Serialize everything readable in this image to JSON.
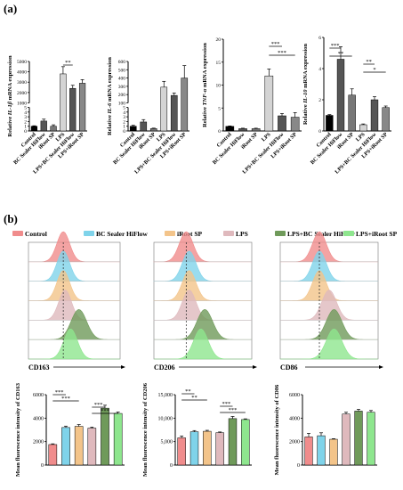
{
  "panel_a_label": "(a)",
  "panel_b_label": "(b)",
  "legend_b": [
    {
      "name": "Control",
      "color": "#f08c8c"
    },
    {
      "name": "BC Sealer HiFlow",
      "color": "#7fd3ea"
    },
    {
      "name": "iRoot SP",
      "color": "#f3c48a"
    },
    {
      "name": "LPS",
      "color": "#dfb9bd"
    },
    {
      "name": "LPS+BC Sealer HiFlow",
      "color": "#6f9a5a"
    },
    {
      "name": "LPS+iRoot SP",
      "color": "#8ee68e"
    }
  ],
  "chart_data": [
    {
      "type": "bar",
      "panel": "a1",
      "categories": [
        "Control",
        "BC Sealer HiFlow",
        "iRoot SP",
        "LPS",
        "LPS+BC Sealer HiFlow",
        "LPS+iRoot SP"
      ],
      "values": [
        1.0,
        2.1,
        1.0,
        3800,
        2400,
        2900
      ],
      "errors": [
        0.1,
        0.4,
        0.3,
        700,
        300,
        350
      ],
      "colors": [
        "#000000",
        "#555555",
        "#777777",
        "#d4d4d4",
        "#555555",
        "#888888"
      ],
      "ylabel_pre": "Relative ",
      "ylabel_gene": "IL-1β",
      "ylabel_post": " mRNA expression",
      "axis_break": true,
      "low_ticks": [
        "0",
        "1",
        "2",
        "3",
        "4",
        "5"
      ],
      "high_ticks": [
        "1000",
        "2000",
        "3000",
        "4000",
        "5000"
      ],
      "significance": [
        {
          "from": 3,
          "to": 4,
          "label": "**"
        }
      ]
    },
    {
      "type": "bar",
      "panel": "a2",
      "categories": [
        "Control",
        "BC Sealer HiFlow",
        "iRoot SP",
        "LPS",
        "LPS+BC Sealer HiFlow",
        "LPS+iRoot SP"
      ],
      "values": [
        1.0,
        1.9,
        0.5,
        290,
        190,
        400
      ],
      "errors": [
        0.2,
        0.5,
        0.1,
        70,
        30,
        150
      ],
      "colors": [
        "#000000",
        "#555555",
        "#777777",
        "#d4d4d4",
        "#555555",
        "#888888"
      ],
      "ylabel_pre": "Relative ",
      "ylabel_gene": "IL-6",
      "ylabel_post": " mRNA expression",
      "axis_break": true,
      "low_ticks": [
        "0",
        "1",
        "2",
        "3",
        "4",
        "5"
      ],
      "high_ticks": [
        "100",
        "200",
        "300",
        "400",
        "500",
        "600"
      ],
      "significance": []
    },
    {
      "type": "bar",
      "panel": "a3",
      "categories": [
        "Control",
        "BC Sealer HiFlow",
        "iRoot SP",
        "LPS",
        "LPS+BC Sealer HiFlow",
        "LPS+iRoot SP"
      ],
      "values": [
        1.0,
        0.5,
        0.5,
        12.0,
        3.3,
        3.0
      ],
      "errors": [
        0.1,
        0.1,
        0.1,
        1.5,
        0.5,
        1.0
      ],
      "colors": [
        "#000000",
        "#555555",
        "#777777",
        "#d4d4d4",
        "#555555",
        "#888888"
      ],
      "ylabel_pre": "Relative ",
      "ylabel_gene": "TNF-α",
      "ylabel_post": " mRNA expression",
      "ylim": [
        0,
        20
      ],
      "ticks": [
        "0",
        "5",
        "10",
        "15",
        "20"
      ],
      "significance": [
        {
          "from": 3,
          "to": 4,
          "label": "***"
        },
        {
          "from": 3,
          "to": 5,
          "label": "***"
        }
      ]
    },
    {
      "type": "bar",
      "panel": "a4",
      "categories": [
        "Control",
        "BC Sealer HiFlow",
        "iRoot SP",
        "LPS",
        "LPS+BC Sealer HiFlow",
        "LPS+iRoot SP"
      ],
      "values": [
        1.0,
        4.6,
        2.3,
        0.4,
        2.0,
        1.5
      ],
      "errors": [
        0.05,
        0.8,
        0.4,
        0.05,
        0.2,
        0.1
      ],
      "colors": [
        "#000000",
        "#555555",
        "#777777",
        "#d4d4d4",
        "#555555",
        "#888888"
      ],
      "ylabel_pre": "Relative ",
      "ylabel_gene": "IL-10",
      "ylabel_post": " mRNA expression",
      "ylim": [
        0,
        6
      ],
      "ticks": [
        "0",
        "2",
        "4",
        "6"
      ],
      "significance": [
        {
          "from": 0,
          "to": 1,
          "label": "***"
        },
        {
          "from": 0,
          "to": 2,
          "label": "**"
        },
        {
          "from": 3,
          "to": 4,
          "label": "**"
        },
        {
          "from": 3,
          "to": 5,
          "label": "*"
        }
      ]
    },
    {
      "type": "histogram",
      "panel": "b-hist-1",
      "xlabel": "CD163",
      "peaks": [
        0.38,
        0.38,
        0.38,
        0.4,
        0.55,
        0.46
      ],
      "widths": [
        0.14,
        0.14,
        0.14,
        0.14,
        0.17,
        0.15
      ]
    },
    {
      "type": "histogram",
      "panel": "b-hist-2",
      "xlabel": "CD206",
      "peaks": [
        0.33,
        0.36,
        0.36,
        0.36,
        0.52,
        0.48
      ],
      "widths": [
        0.14,
        0.14,
        0.14,
        0.14,
        0.16,
        0.15
      ]
    },
    {
      "type": "histogram",
      "panel": "b-hist-3",
      "xlabel": "CD86",
      "peaks": [
        0.4,
        0.4,
        0.4,
        0.5,
        0.55,
        0.55
      ],
      "widths": [
        0.14,
        0.14,
        0.14,
        0.15,
        0.16,
        0.16
      ]
    },
    {
      "type": "bar",
      "panel": "b1",
      "categories": [
        "Control",
        "BC Sealer HiFlow",
        "iRoot SP",
        "LPS",
        "LPS+BC Sealer HiFlow",
        "LPS+iRoot SP"
      ],
      "values": [
        1750,
        3200,
        3300,
        3150,
        4850,
        4400
      ],
      "errors": [
        60,
        120,
        150,
        90,
        250,
        120
      ],
      "colors": [
        "#f08c8c",
        "#7fd3ea",
        "#f3c48a",
        "#dfb9bd",
        "#6f9a5a",
        "#8ee68e"
      ],
      "ylabel": "Mean fluorescence intensity of CD163",
      "ylim": [
        0,
        6000
      ],
      "ticks": [
        "0",
        "2000",
        "4000",
        "6000"
      ],
      "significance": [
        {
          "from": 0,
          "to": 1,
          "label": "***"
        },
        {
          "from": 0,
          "to": 2,
          "label": "***"
        },
        {
          "from": 3,
          "to": 4,
          "label": "***"
        },
        {
          "from": 3,
          "to": 5,
          "label": "***"
        }
      ]
    },
    {
      "type": "bar",
      "panel": "b2",
      "categories": [
        "Control",
        "BC Sealer HiFlow",
        "iRoot SP",
        "LPS",
        "LPS+BC Sealer HiFlow",
        "LPS+iRoot SP"
      ],
      "values": [
        5800,
        7100,
        7200,
        6900,
        9900,
        9700
      ],
      "errors": [
        400,
        250,
        200,
        150,
        450,
        150
      ],
      "colors": [
        "#f08c8c",
        "#7fd3ea",
        "#f3c48a",
        "#dfb9bd",
        "#6f9a5a",
        "#8ee68e"
      ],
      "ylabel": "Mean fluorescence intensity of CD206",
      "ylim": [
        0,
        15000
      ],
      "ticks": [
        "0",
        "5,000",
        "10,000",
        "15,000"
      ],
      "significance": [
        {
          "from": 0,
          "to": 1,
          "label": "**"
        },
        {
          "from": 0,
          "to": 2,
          "label": "**"
        },
        {
          "from": 3,
          "to": 4,
          "label": "***"
        },
        {
          "from": 3,
          "to": 5,
          "label": "***"
        }
      ]
    },
    {
      "type": "bar",
      "panel": "b3",
      "categories": [
        "Control",
        "BC Sealer HiFlow",
        "iRoot SP",
        "LPS",
        "LPS+BC Sealer HiFlow",
        "LPS+iRoot SP"
      ],
      "values": [
        2400,
        2500,
        2200,
        4350,
        4600,
        4500
      ],
      "errors": [
        300,
        250,
        50,
        150,
        150,
        150
      ],
      "colors": [
        "#f08c8c",
        "#7fd3ea",
        "#f3c48a",
        "#dfb9bd",
        "#6f9a5a",
        "#8ee68e"
      ],
      "ylabel": "Mean fluorescence intensity of CD86",
      "ylim": [
        0,
        6000
      ],
      "ticks": [
        "0",
        "2000",
        "4000",
        "6000"
      ],
      "significance": []
    }
  ]
}
